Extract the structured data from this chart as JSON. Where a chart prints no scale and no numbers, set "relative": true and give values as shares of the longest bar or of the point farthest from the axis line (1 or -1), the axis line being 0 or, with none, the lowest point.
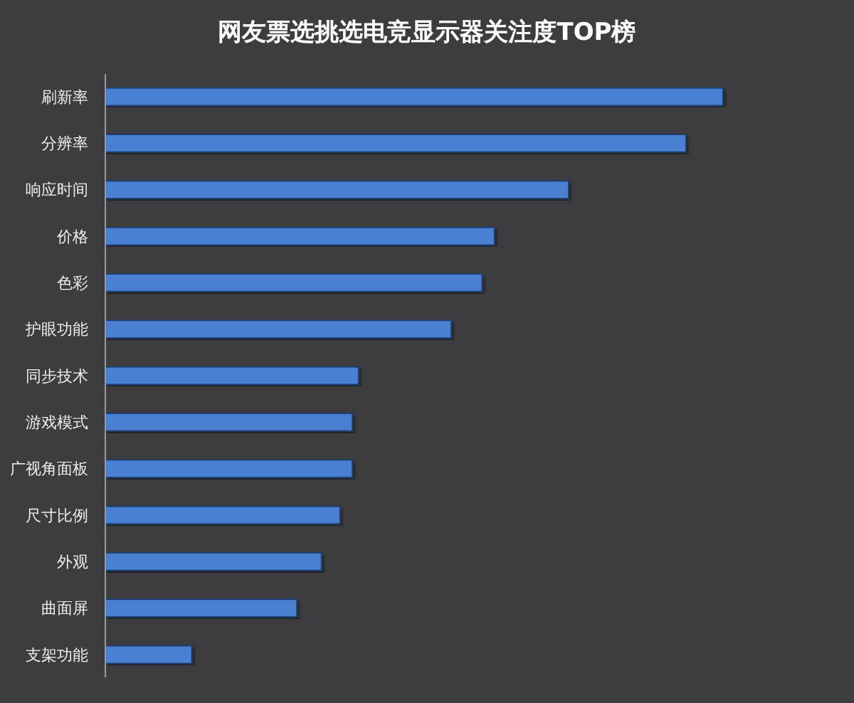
{
  "chart_data": {
    "type": "bar",
    "orientation": "horizontal",
    "relative": true,
    "title": "网友票选挑选电竞显示器关注度TOP榜",
    "categories": [
      "刷新率",
      "分辨率",
      "响应时间",
      "价格",
      "色彩",
      "护眼功能",
      "同步技术",
      "游戏模式",
      "广视角面板",
      "尺寸比例",
      "外观",
      "曲面屏",
      "支架功能"
    ],
    "values": [
      1,
      0.94,
      0.75,
      0.63,
      0.61,
      0.56,
      0.41,
      0.4,
      0.4,
      0.38,
      0.35,
      0.31,
      0.14
    ],
    "color": "#4a80d2"
  }
}
